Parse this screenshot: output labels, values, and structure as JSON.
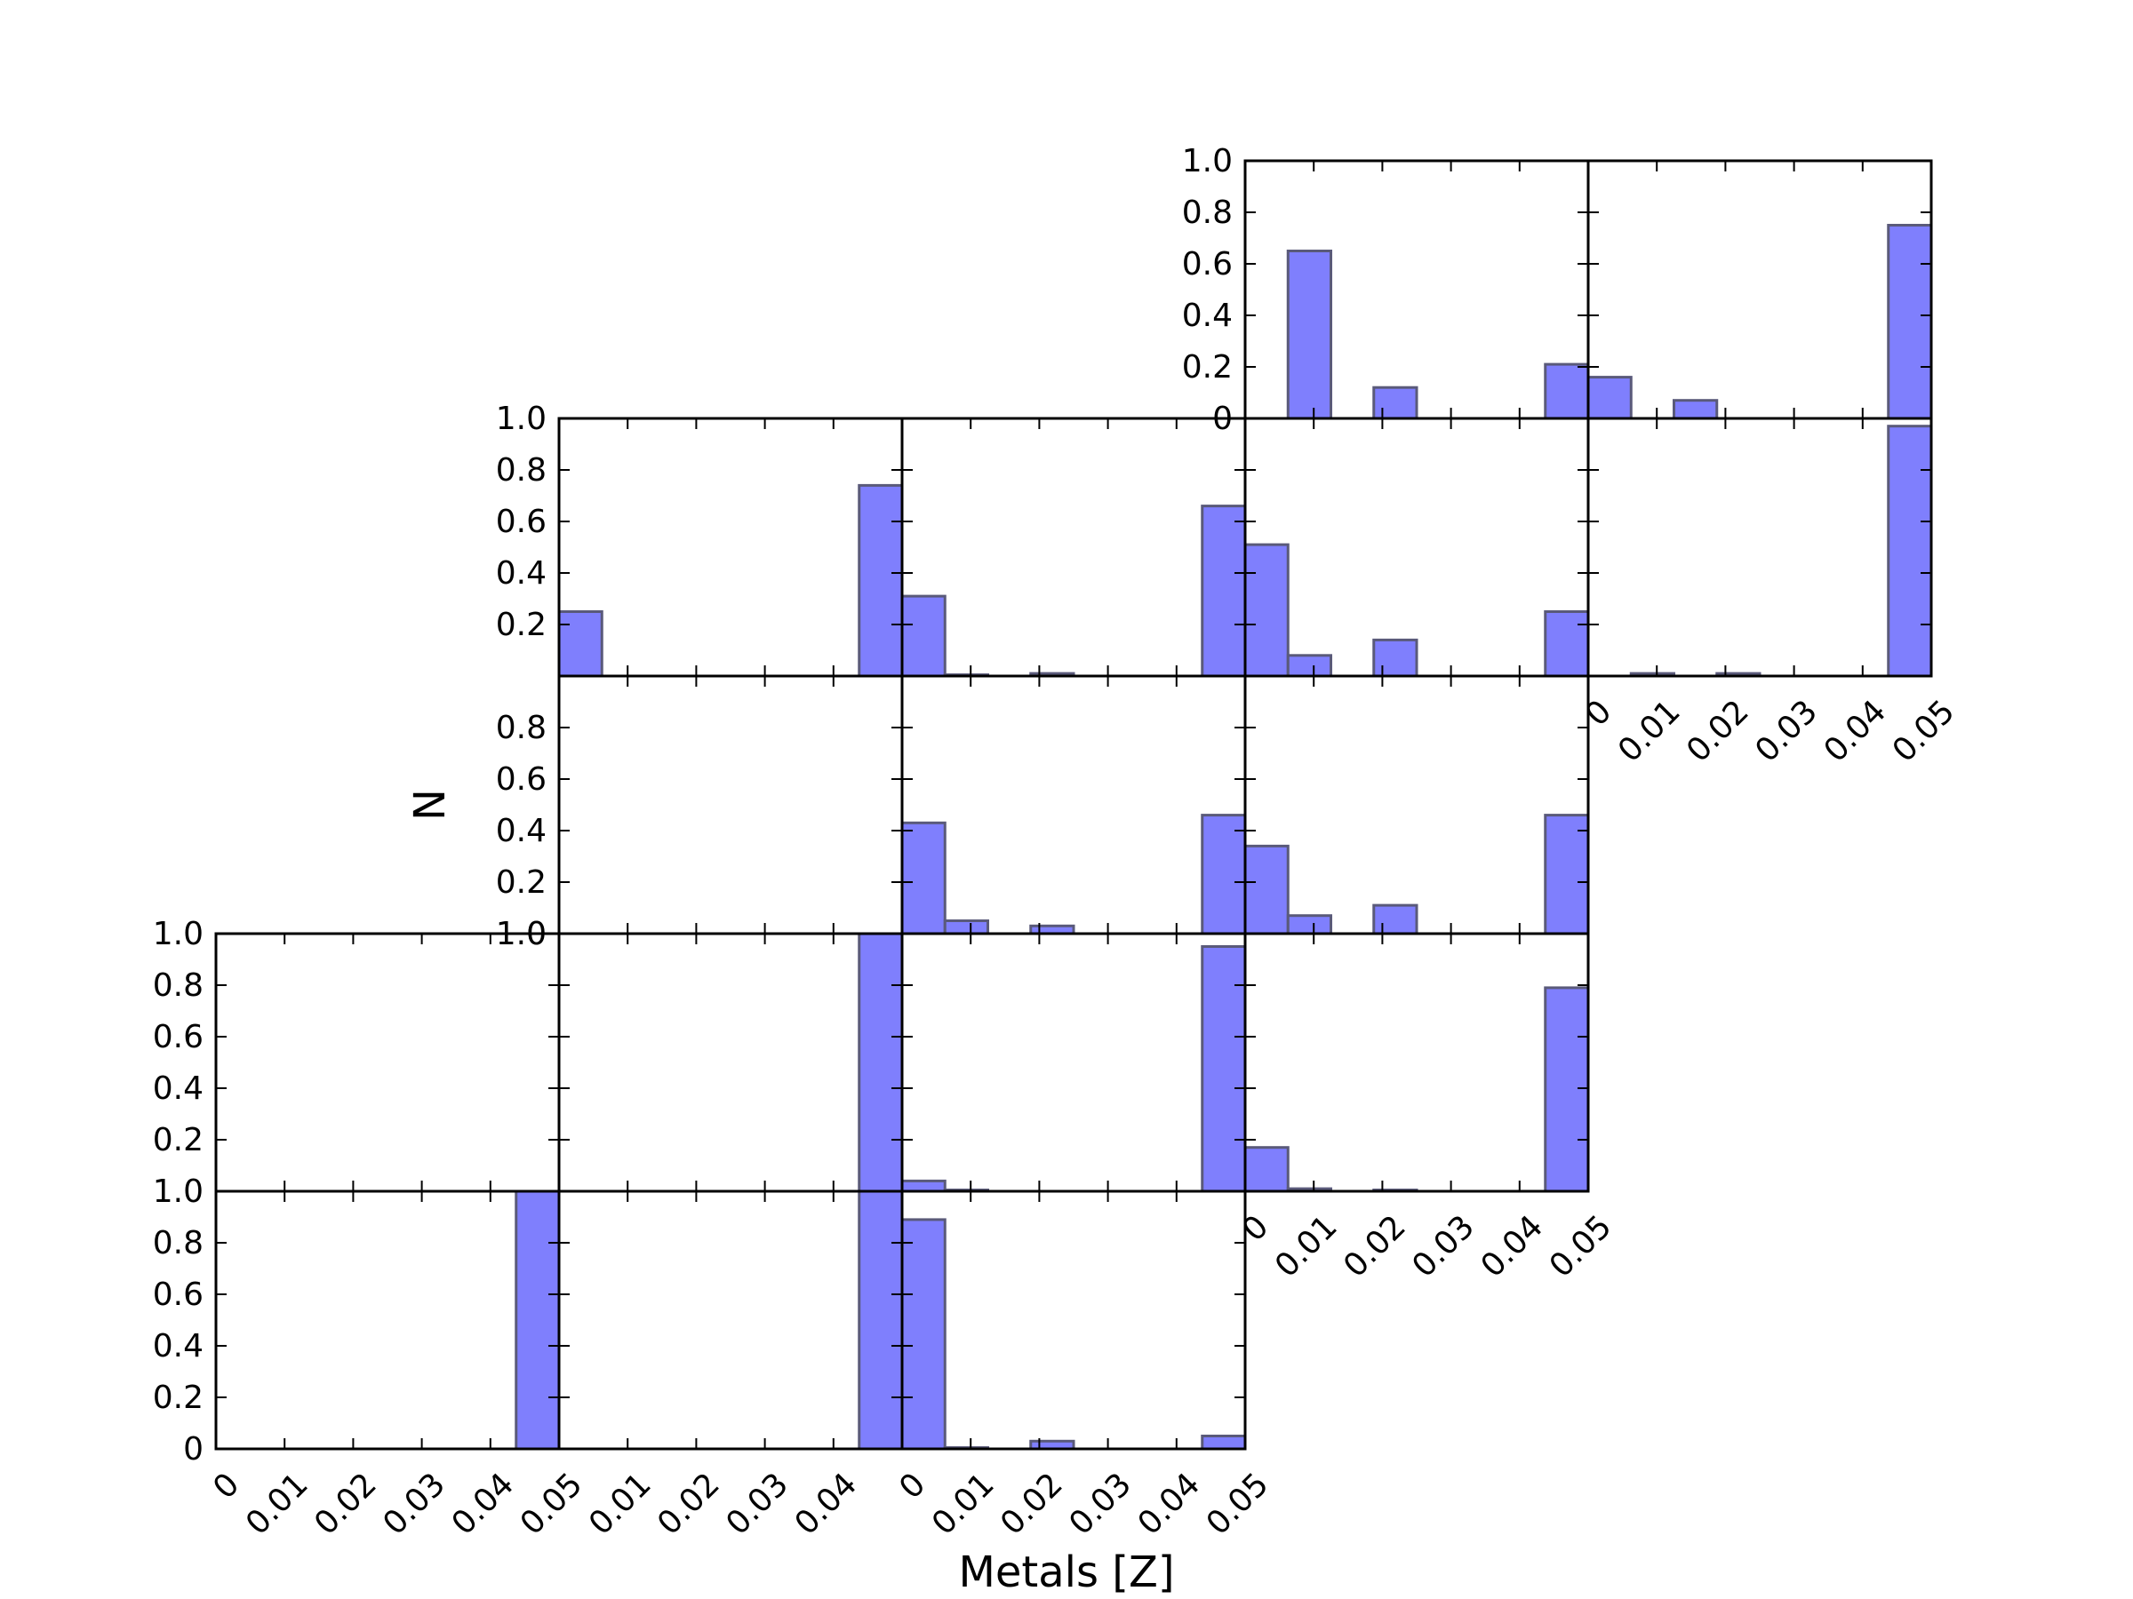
{
  "chart_data": {
    "type": "bar",
    "subtype": "histogram-grid",
    "bar_color": "#7f7ffd",
    "bar_edge_color": "#5a5a7a",
    "xlabel": "Metals [Z]",
    "ylabel": "N",
    "xlim": [
      0,
      0.05
    ],
    "ylim": [
      0,
      1.0
    ],
    "x_ticks": [
      "0",
      "0.01",
      "0.02",
      "0.03",
      "0.04",
      "0.05"
    ],
    "y_ticks": [
      "0",
      "0.2",
      "0.4",
      "0.6",
      "0.8",
      "1.0"
    ],
    "bin_edges": [
      0,
      0.00625,
      0.0125,
      0.01875,
      0.025,
      0.03125,
      0.0375,
      0.04375,
      0.05
    ],
    "panels": [
      {
        "row": 0,
        "col": 3,
        "values": [
          0,
          0.65,
          0,
          0.12,
          0,
          0,
          0,
          0.21
        ]
      },
      {
        "row": 0,
        "col": 4,
        "values": [
          0.16,
          0,
          0.07,
          0,
          0,
          0,
          0,
          0.75
        ]
      },
      {
        "row": 1,
        "col": 1,
        "values": [
          0.25,
          0,
          0,
          0,
          0,
          0,
          0,
          0.74
        ]
      },
      {
        "row": 1,
        "col": 2,
        "values": [
          0.31,
          0.005,
          0,
          0.01,
          0,
          0,
          0,
          0.66
        ]
      },
      {
        "row": 1,
        "col": 3,
        "values": [
          0.51,
          0.08,
          0,
          0.14,
          0,
          0,
          0,
          0.25
        ]
      },
      {
        "row": 1,
        "col": 4,
        "values": [
          0,
          0.01,
          0,
          0.01,
          0,
          0,
          0,
          0.97
        ]
      },
      {
        "row": 2,
        "col": 1,
        "values": [
          0,
          0,
          0,
          0,
          0,
          0,
          0,
          0
        ]
      },
      {
        "row": 2,
        "col": 2,
        "values": [
          0.43,
          0.05,
          0,
          0.03,
          0,
          0,
          0,
          0.46
        ]
      },
      {
        "row": 2,
        "col": 3,
        "values": [
          0.34,
          0.07,
          0,
          0.11,
          0,
          0,
          0,
          0.46
        ]
      },
      {
        "row": 3,
        "col": 0,
        "values": [
          0,
          0,
          0,
          0,
          0,
          0,
          0,
          0
        ]
      },
      {
        "row": 3,
        "col": 1,
        "values": [
          0,
          0,
          0,
          0,
          0,
          0,
          0,
          1.0
        ]
      },
      {
        "row": 3,
        "col": 2,
        "values": [
          0.04,
          0.005,
          0,
          0,
          0,
          0,
          0,
          0.95
        ]
      },
      {
        "row": 3,
        "col": 3,
        "values": [
          0.17,
          0.01,
          0,
          0.005,
          0,
          0,
          0,
          0.79
        ]
      },
      {
        "row": 4,
        "col": 0,
        "values": [
          0,
          0,
          0,
          0,
          0,
          0,
          0,
          1.0
        ]
      },
      {
        "row": 4,
        "col": 1,
        "values": [
          0,
          0,
          0,
          0,
          0,
          0,
          0,
          1.0
        ]
      },
      {
        "row": 4,
        "col": 2,
        "values": [
          0.89,
          0.005,
          0,
          0.03,
          0,
          0,
          0,
          0.05
        ]
      }
    ],
    "y_tick_sets": [
      {
        "row": 0,
        "col": 3,
        "labels": [
          "0",
          "0.2",
          "0.4",
          "0.6",
          "0.8",
          "1.0"
        ]
      },
      {
        "row": 1,
        "col": 1,
        "labels": [
          "",
          "0.2",
          "0.4",
          "0.6",
          "0.8",
          "1.0"
        ]
      },
      {
        "row": 2,
        "col": 1,
        "labels": [
          "1.0",
          "0.2",
          "0.4",
          "0.6",
          "0.8",
          ""
        ]
      },
      {
        "row": 3,
        "col": 0,
        "labels": [
          "",
          "0.2",
          "0.4",
          "0.6",
          "0.8",
          "1.0"
        ]
      },
      {
        "row": 4,
        "col": 0,
        "labels": [
          "0",
          "0.2",
          "0.4",
          "0.6",
          "0.8",
          "1.0"
        ]
      }
    ],
    "y_tick_extra": [
      {
        "row": 2,
        "col": 1,
        "level": 0,
        "label": "0"
      }
    ],
    "x_tick_sets": [
      {
        "row": 1,
        "col": 4,
        "labels": [
          "0",
          "0.01",
          "0.02",
          "0.03",
          "0.04",
          "0.05"
        ]
      },
      {
        "row": 3,
        "col": 3,
        "labels": [
          "0",
          "0.01",
          "0.02",
          "0.03",
          "0.04",
          "0.05"
        ]
      },
      {
        "row": 4,
        "col": 0,
        "labels": [
          "0",
          "0.01",
          "0.02",
          "0.03",
          "0.04",
          ""
        ]
      },
      {
        "row": 4,
        "col": 1,
        "labels": [
          "0.05",
          "0.01",
          "0.02",
          "0.03",
          "0.04",
          ""
        ]
      },
      {
        "row": 4,
        "col": 2,
        "labels": [
          "0",
          "0.01",
          "0.02",
          "0.03",
          "0.04",
          "0.05"
        ]
      }
    ]
  }
}
